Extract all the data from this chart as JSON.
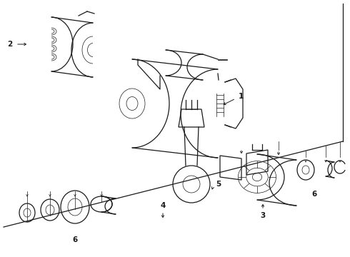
{
  "bg_color": "#ffffff",
  "line_color": "#1a1a1a",
  "figsize": [
    4.9,
    3.6
  ],
  "dpi": 100,
  "lw_main": 0.9,
  "lw_thin": 0.5,
  "label_fontsize": 7.5,
  "xlim": [
    0,
    490
  ],
  "ylim": [
    0,
    360
  ]
}
